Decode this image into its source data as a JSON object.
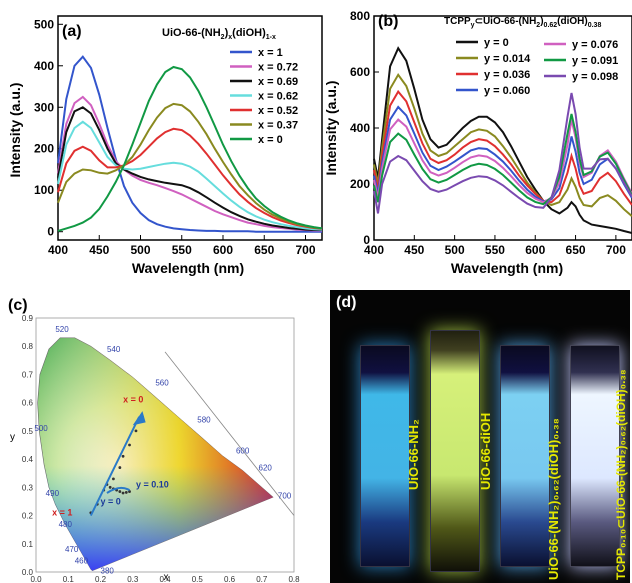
{
  "panel_a": {
    "tag": "(a)",
    "title_main": "UiO-66-(NH",
    "title_sub1": "2",
    "title_mid": ")",
    "title_sub2": "x",
    "title_mid2": "(diOH)",
    "title_sub3": "1-x",
    "xlabel": "Wavelength (nm)",
    "ylabel": "Intensity (a.u.)",
    "xticks": [
      "400",
      "450",
      "500",
      "550",
      "600",
      "650",
      "700"
    ],
    "yticks": [
      "0",
      "100",
      "200",
      "300",
      "400",
      "500"
    ]
  },
  "panel_b": {
    "tag": "(b)",
    "title_pre": "TCPP",
    "title_sub1": "y",
    "title_mid": "⊂UiO-66-(NH",
    "title_sub2": "2",
    "title_mid2": ")",
    "title_sub3": "0.62",
    "title_mid3": "(diOH)",
    "title_sub4": "0.38",
    "xlabel": "Wavelength (nm)",
    "ylabel": "Intensity (a.u.)",
    "xticks": [
      "400",
      "450",
      "500",
      "550",
      "600",
      "650",
      "700"
    ],
    "yticks": [
      "0",
      "200",
      "400",
      "600",
      "800"
    ]
  },
  "panel_c": {
    "tag": "(c)",
    "xlabel": "x",
    "ylabel": "y",
    "xticks": [
      "0.0",
      "0.1",
      "0.2",
      "0.3",
      "0.4",
      "0.5",
      "0.6",
      "0.7",
      "0.8"
    ],
    "yticks": [
      "0.0",
      "0.1",
      "0.2",
      "0.3",
      "0.4",
      "0.5",
      "0.6",
      "0.7",
      "0.8",
      "0.9"
    ],
    "wavelength_labels": [
      "380",
      "460",
      "470",
      "480",
      "490",
      "500",
      "520",
      "540",
      "560",
      "580",
      "600",
      "620",
      "700"
    ],
    "annot_x0": "x = 0",
    "annot_x1": "x = 1",
    "annot_y010": "y = 0.10",
    "annot_y0": "y = 0"
  },
  "panel_d": {
    "tag": "(d)",
    "labels": [
      "UiO-66-NH₂",
      "UiO-66-diOH",
      "UiO-66-(NH₂)₀.₆₂(diOH)₀.₃₈",
      "TCPP₀.₁₀⊂UiO-66-(NH₂)₀.₆₂(diOH)₀.₃₈"
    ],
    "cuvette_colors": [
      "#3fb8e8",
      "#d6f07a",
      "#7cd0f2",
      "#eef6ff"
    ]
  },
  "chart_data": [
    {
      "type": "line",
      "panel": "a",
      "xlabel": "Wavelength (nm)",
      "ylabel": "Intensity (a.u.)",
      "xlim": [
        400,
        720
      ],
      "ylim": [
        -20,
        520
      ],
      "grid": false,
      "legend_placement": "top-right",
      "x": [
        400,
        410,
        420,
        430,
        440,
        450,
        460,
        470,
        480,
        490,
        500,
        510,
        520,
        530,
        540,
        550,
        560,
        570,
        580,
        590,
        600,
        610,
        620,
        630,
        640,
        650,
        660,
        670,
        680,
        690,
        700,
        710,
        720
      ],
      "series": [
        {
          "name": "x = 1",
          "color": "#3355cc",
          "values": [
            165,
            320,
            400,
            422,
            395,
            330,
            250,
            175,
            110,
            70,
            45,
            28,
            18,
            12,
            8,
            6,
            4,
            3,
            2,
            2,
            1,
            1,
            1,
            1,
            0,
            0,
            0,
            0,
            0,
            0,
            0,
            0,
            0
          ]
        },
        {
          "name": "x = 0.72",
          "color": "#d060c0",
          "values": [
            140,
            260,
            310,
            325,
            305,
            260,
            210,
            170,
            150,
            135,
            125,
            118,
            112,
            105,
            98,
            90,
            80,
            70,
            60,
            50,
            42,
            35,
            28,
            22,
            18,
            14,
            11,
            9,
            7,
            5,
            4,
            3,
            3
          ]
        },
        {
          "name": "x = 0.69",
          "color": "#111111",
          "values": [
            130,
            240,
            290,
            300,
            285,
            245,
            200,
            165,
            150,
            140,
            132,
            126,
            122,
            118,
            115,
            112,
            105,
            95,
            83,
            70,
            58,
            47,
            38,
            30,
            24,
            19,
            15,
            12,
            9,
            7,
            5,
            4,
            4
          ]
        },
        {
          "name": "x = 0.62",
          "color": "#66dddd",
          "values": [
            115,
            210,
            250,
            265,
            250,
            215,
            180,
            160,
            152,
            150,
            152,
            156,
            160,
            164,
            166,
            164,
            157,
            145,
            128,
            110,
            92,
            75,
            60,
            47,
            37,
            29,
            23,
            18,
            14,
            11,
            8,
            6,
            5
          ]
        },
        {
          "name": "x = 0.52",
          "color": "#e03030",
          "values": [
            95,
            165,
            195,
            205,
            195,
            172,
            155,
            155,
            160,
            170,
            185,
            205,
            225,
            240,
            248,
            245,
            232,
            212,
            188,
            162,
            136,
            112,
            90,
            72,
            57,
            45,
            35,
            27,
            21,
            16,
            12,
            9,
            7
          ]
        },
        {
          "name": "x = 0.37",
          "color": "#8a8a20",
          "values": [
            70,
            120,
            140,
            150,
            148,
            142,
            140,
            148,
            160,
            180,
            210,
            245,
            275,
            298,
            308,
            305,
            290,
            265,
            235,
            200,
            168,
            138,
            110,
            88,
            69,
            53,
            41,
            32,
            24,
            18,
            14,
            10,
            8
          ]
        },
        {
          "name": "x = 0",
          "color": "#119944",
          "values": [
            2,
            8,
            14,
            22,
            34,
            55,
            85,
            120,
            160,
            210,
            262,
            315,
            355,
            385,
            397,
            392,
            372,
            340,
            300,
            255,
            210,
            170,
            135,
            105,
            80,
            62,
            47,
            36,
            27,
            20,
            15,
            11,
            8
          ]
        }
      ]
    },
    {
      "type": "line",
      "panel": "b",
      "xlabel": "Wavelength (nm)",
      "ylabel": "Intensity (a.u.)",
      "xlim": [
        400,
        720
      ],
      "ylim": [
        0,
        800
      ],
      "grid": false,
      "legend_placement": "top",
      "x": [
        400,
        405,
        410,
        420,
        430,
        440,
        450,
        460,
        470,
        480,
        490,
        500,
        510,
        520,
        530,
        540,
        550,
        560,
        570,
        580,
        590,
        600,
        610,
        620,
        630,
        640,
        645,
        650,
        655,
        660,
        670,
        680,
        690,
        700,
        710,
        720
      ],
      "series": [
        {
          "name": "y = 0",
          "color": "#111111",
          "values": [
            290,
            220,
            360,
            620,
            685,
            640,
            540,
            430,
            360,
            330,
            340,
            370,
            400,
            425,
            440,
            440,
            420,
            385,
            335,
            280,
            225,
            180,
            140,
            110,
            95,
            115,
            135,
            120,
            90,
            70,
            55,
            50,
            45,
            40,
            32,
            25
          ]
        },
        {
          "name": "y = 0.014",
          "color": "#8a8a20",
          "values": [
            270,
            200,
            330,
            540,
            590,
            550,
            470,
            380,
            320,
            300,
            310,
            335,
            360,
            385,
            395,
            390,
            370,
            335,
            295,
            250,
            205,
            170,
            140,
            125,
            135,
            180,
            220,
            190,
            150,
            125,
            120,
            150,
            160,
            140,
            110,
            85
          ]
        },
        {
          "name": "y = 0.036",
          "color": "#e03030",
          "values": [
            250,
            180,
            300,
            480,
            530,
            495,
            420,
            345,
            290,
            275,
            285,
            305,
            330,
            350,
            360,
            355,
            335,
            305,
            270,
            230,
            195,
            165,
            140,
            135,
            160,
            240,
            300,
            255,
            195,
            165,
            175,
            220,
            240,
            210,
            165,
            125
          ]
        },
        {
          "name": "y = 0.060",
          "color": "#3355cc",
          "values": [
            230,
            165,
            275,
            430,
            475,
            445,
            380,
            312,
            265,
            250,
            262,
            280,
            300,
            320,
            328,
            325,
            305,
            280,
            248,
            212,
            180,
            155,
            138,
            145,
            185,
            295,
            370,
            315,
            240,
            200,
            215,
            270,
            290,
            255,
            200,
            150
          ]
        },
        {
          "name": "y = 0.076",
          "color": "#d060c0",
          "values": [
            215,
            150,
            255,
            395,
            430,
            405,
            345,
            285,
            242,
            230,
            240,
            258,
            278,
            295,
            302,
            298,
            282,
            258,
            228,
            196,
            168,
            148,
            135,
            150,
            205,
            340,
            430,
            365,
            275,
            225,
            240,
            300,
            320,
            280,
            220,
            165
          ]
        },
        {
          "name": "y = 0.091",
          "color": "#119944",
          "values": [
            195,
            135,
            230,
            350,
            380,
            358,
            305,
            254,
            217,
            205,
            215,
            232,
            250,
            265,
            272,
            268,
            254,
            232,
            205,
            177,
            152,
            136,
            128,
            152,
            225,
            380,
            450,
            385,
            290,
            232,
            245,
            298,
            312,
            272,
            215,
            160
          ]
        },
        {
          "name": "y = 0.098",
          "color": "#7a4ab0",
          "values": [
            175,
            95,
            200,
            280,
            300,
            285,
            248,
            210,
            182,
            172,
            180,
            195,
            210,
            222,
            228,
            225,
            213,
            195,
            172,
            150,
            130,
            118,
            115,
            150,
            250,
            440,
            525,
            450,
            330,
            255,
            255,
            288,
            290,
            255,
            205,
            155
          ]
        }
      ]
    },
    {
      "type": "scatter",
      "panel": "c",
      "xlabel": "x",
      "ylabel": "y",
      "xlim": [
        0,
        0.8
      ],
      "ylim": [
        0,
        0.9
      ],
      "series": [
        {
          "name": "x series",
          "color": "#333333",
          "x": [
            0.17,
            0.19,
            0.21,
            0.24,
            0.26,
            0.27,
            0.29,
            0.31,
            0.33
          ],
          "y": [
            0.21,
            0.24,
            0.29,
            0.33,
            0.37,
            0.41,
            0.45,
            0.5,
            0.55
          ]
        },
        {
          "name": "y series",
          "color": "#333333",
          "x": [
            0.22,
            0.23,
            0.24,
            0.25,
            0.26,
            0.27,
            0.28,
            0.29
          ],
          "y": [
            0.31,
            0.3,
            0.295,
            0.29,
            0.285,
            0.28,
            0.282,
            0.285
          ]
        }
      ]
    }
  ]
}
